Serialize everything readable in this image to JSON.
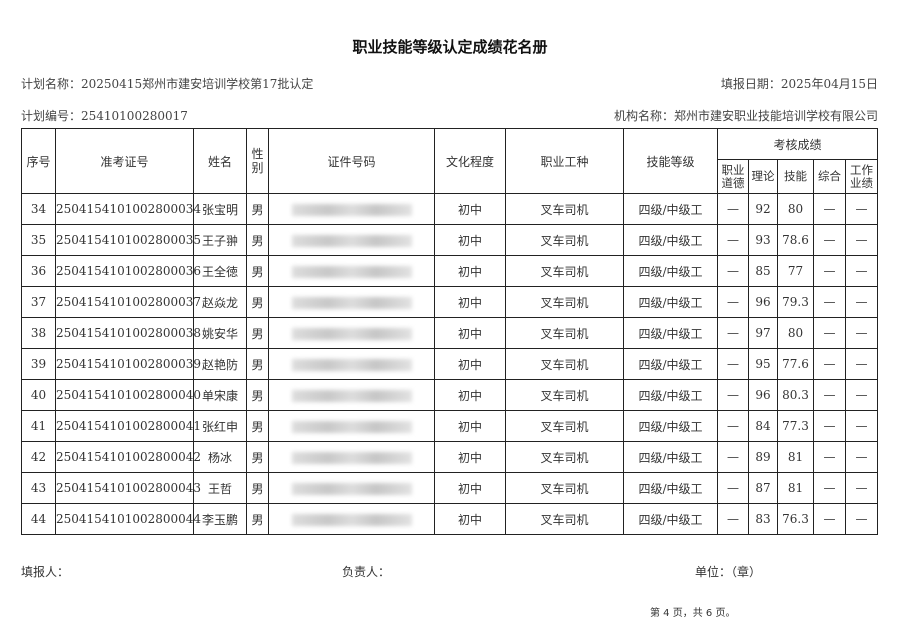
{
  "title": "职业技能等级认定成绩花名册",
  "plan_name": "计划名称：20250415郑州市建安培训学校第17批认定",
  "fill_date": "填报日期：2025年04月15日",
  "plan_number": "计划编号：25410100280017",
  "org_name": "机构名称：郑州市建安职业技能培训学校有限公司",
  "headers": {
    "seq": "序号",
    "exam_no": "准考证号",
    "name": "姓名",
    "gender": "性别",
    "id_no": "证件号码",
    "education": "文化程度",
    "occupation": "职业工种",
    "skill_level": "技能等级",
    "scores": "考核成绩",
    "ethics": "职业道德",
    "theory": "理论",
    "skill": "技能",
    "overall": "综合",
    "performance": "工作业绩"
  },
  "rows": [
    {
      "seq": "34",
      "exam_no": "250415410100280003​4",
      "name": "张宝明",
      "gender": "男",
      "education": "初中",
      "occupation": "叉车司机",
      "level": "四级/中级工",
      "ethics": "—",
      "theory": "92",
      "skill": "80",
      "overall": "—",
      "performance": "—"
    },
    {
      "seq": "35",
      "exam_no": "2504154101002800035",
      "name": "王子翀",
      "gender": "男",
      "education": "初中",
      "occupation": "叉车司机",
      "level": "四级/中级工",
      "ethics": "—",
      "theory": "93",
      "skill": "78.6",
      "overall": "—",
      "performance": "—"
    },
    {
      "seq": "36",
      "exam_no": "2504154101002800036",
      "name": "王全徳",
      "gender": "男",
      "education": "初中",
      "occupation": "叉车司机",
      "level": "四级/中级工",
      "ethics": "—",
      "theory": "85",
      "skill": "77",
      "overall": "—",
      "performance": "—"
    },
    {
      "seq": "37",
      "exam_no": "2504154101002800037",
      "name": "赵焱龙",
      "gender": "男",
      "education": "初中",
      "occupation": "叉车司机",
      "level": "四级/中级工",
      "ethics": "—",
      "theory": "96",
      "skill": "79.3",
      "overall": "—",
      "performance": "—"
    },
    {
      "seq": "38",
      "exam_no": "2504154101002800038",
      "name": "姚安华",
      "gender": "男",
      "education": "初中",
      "occupation": "叉车司机",
      "level": "四级/中级工",
      "ethics": "—",
      "theory": "97",
      "skill": "80",
      "overall": "—",
      "performance": "—"
    },
    {
      "seq": "39",
      "exam_no": "2504154101002800039",
      "name": "赵艳防",
      "gender": "男",
      "education": "初中",
      "occupation": "叉车司机",
      "level": "四级/中级工",
      "ethics": "—",
      "theory": "95",
      "skill": "77.6",
      "overall": "—",
      "performance": "—"
    },
    {
      "seq": "40",
      "exam_no": "2504154101002800040",
      "name": "单宋康",
      "gender": "男",
      "education": "初中",
      "occupation": "叉车司机",
      "level": "四级/中级工",
      "ethics": "—",
      "theory": "96",
      "skill": "80.3",
      "overall": "—",
      "performance": "—"
    },
    {
      "seq": "41",
      "exam_no": "2504154101002800041",
      "name": "张红申",
      "gender": "男",
      "education": "初中",
      "occupation": "叉车司机",
      "level": "四级/中级工",
      "ethics": "—",
      "theory": "84",
      "skill": "77.3",
      "overall": "—",
      "performance": "—"
    },
    {
      "seq": "42",
      "exam_no": "2504154101002800042",
      "name": "杨冰",
      "gender": "男",
      "education": "初中",
      "occupation": "叉车司机",
      "level": "四级/中级工",
      "ethics": "—",
      "theory": "89",
      "skill": "81",
      "overall": "—",
      "performance": "—"
    },
    {
      "seq": "43",
      "exam_no": "2504154101002800043",
      "name": "王哲",
      "gender": "男",
      "education": "初中",
      "occupation": "叉车司机",
      "level": "四级/中级工",
      "ethics": "—",
      "theory": "87",
      "skill": "81",
      "overall": "—",
      "performance": "—"
    },
    {
      "seq": "44",
      "exam_no": "2504154101002800044",
      "name": "李玉鹏",
      "gender": "男",
      "education": "初中",
      "occupation": "叉车司机",
      "level": "四级/中级工",
      "ethics": "—",
      "theory": "83",
      "skill": "76.3",
      "overall": "—",
      "performance": "—"
    }
  ],
  "footer": {
    "filler": "填报人：",
    "person_in_charge": "负责人：",
    "unit": "单位：（章）",
    "page": "第 4 页，共 6 页。"
  }
}
